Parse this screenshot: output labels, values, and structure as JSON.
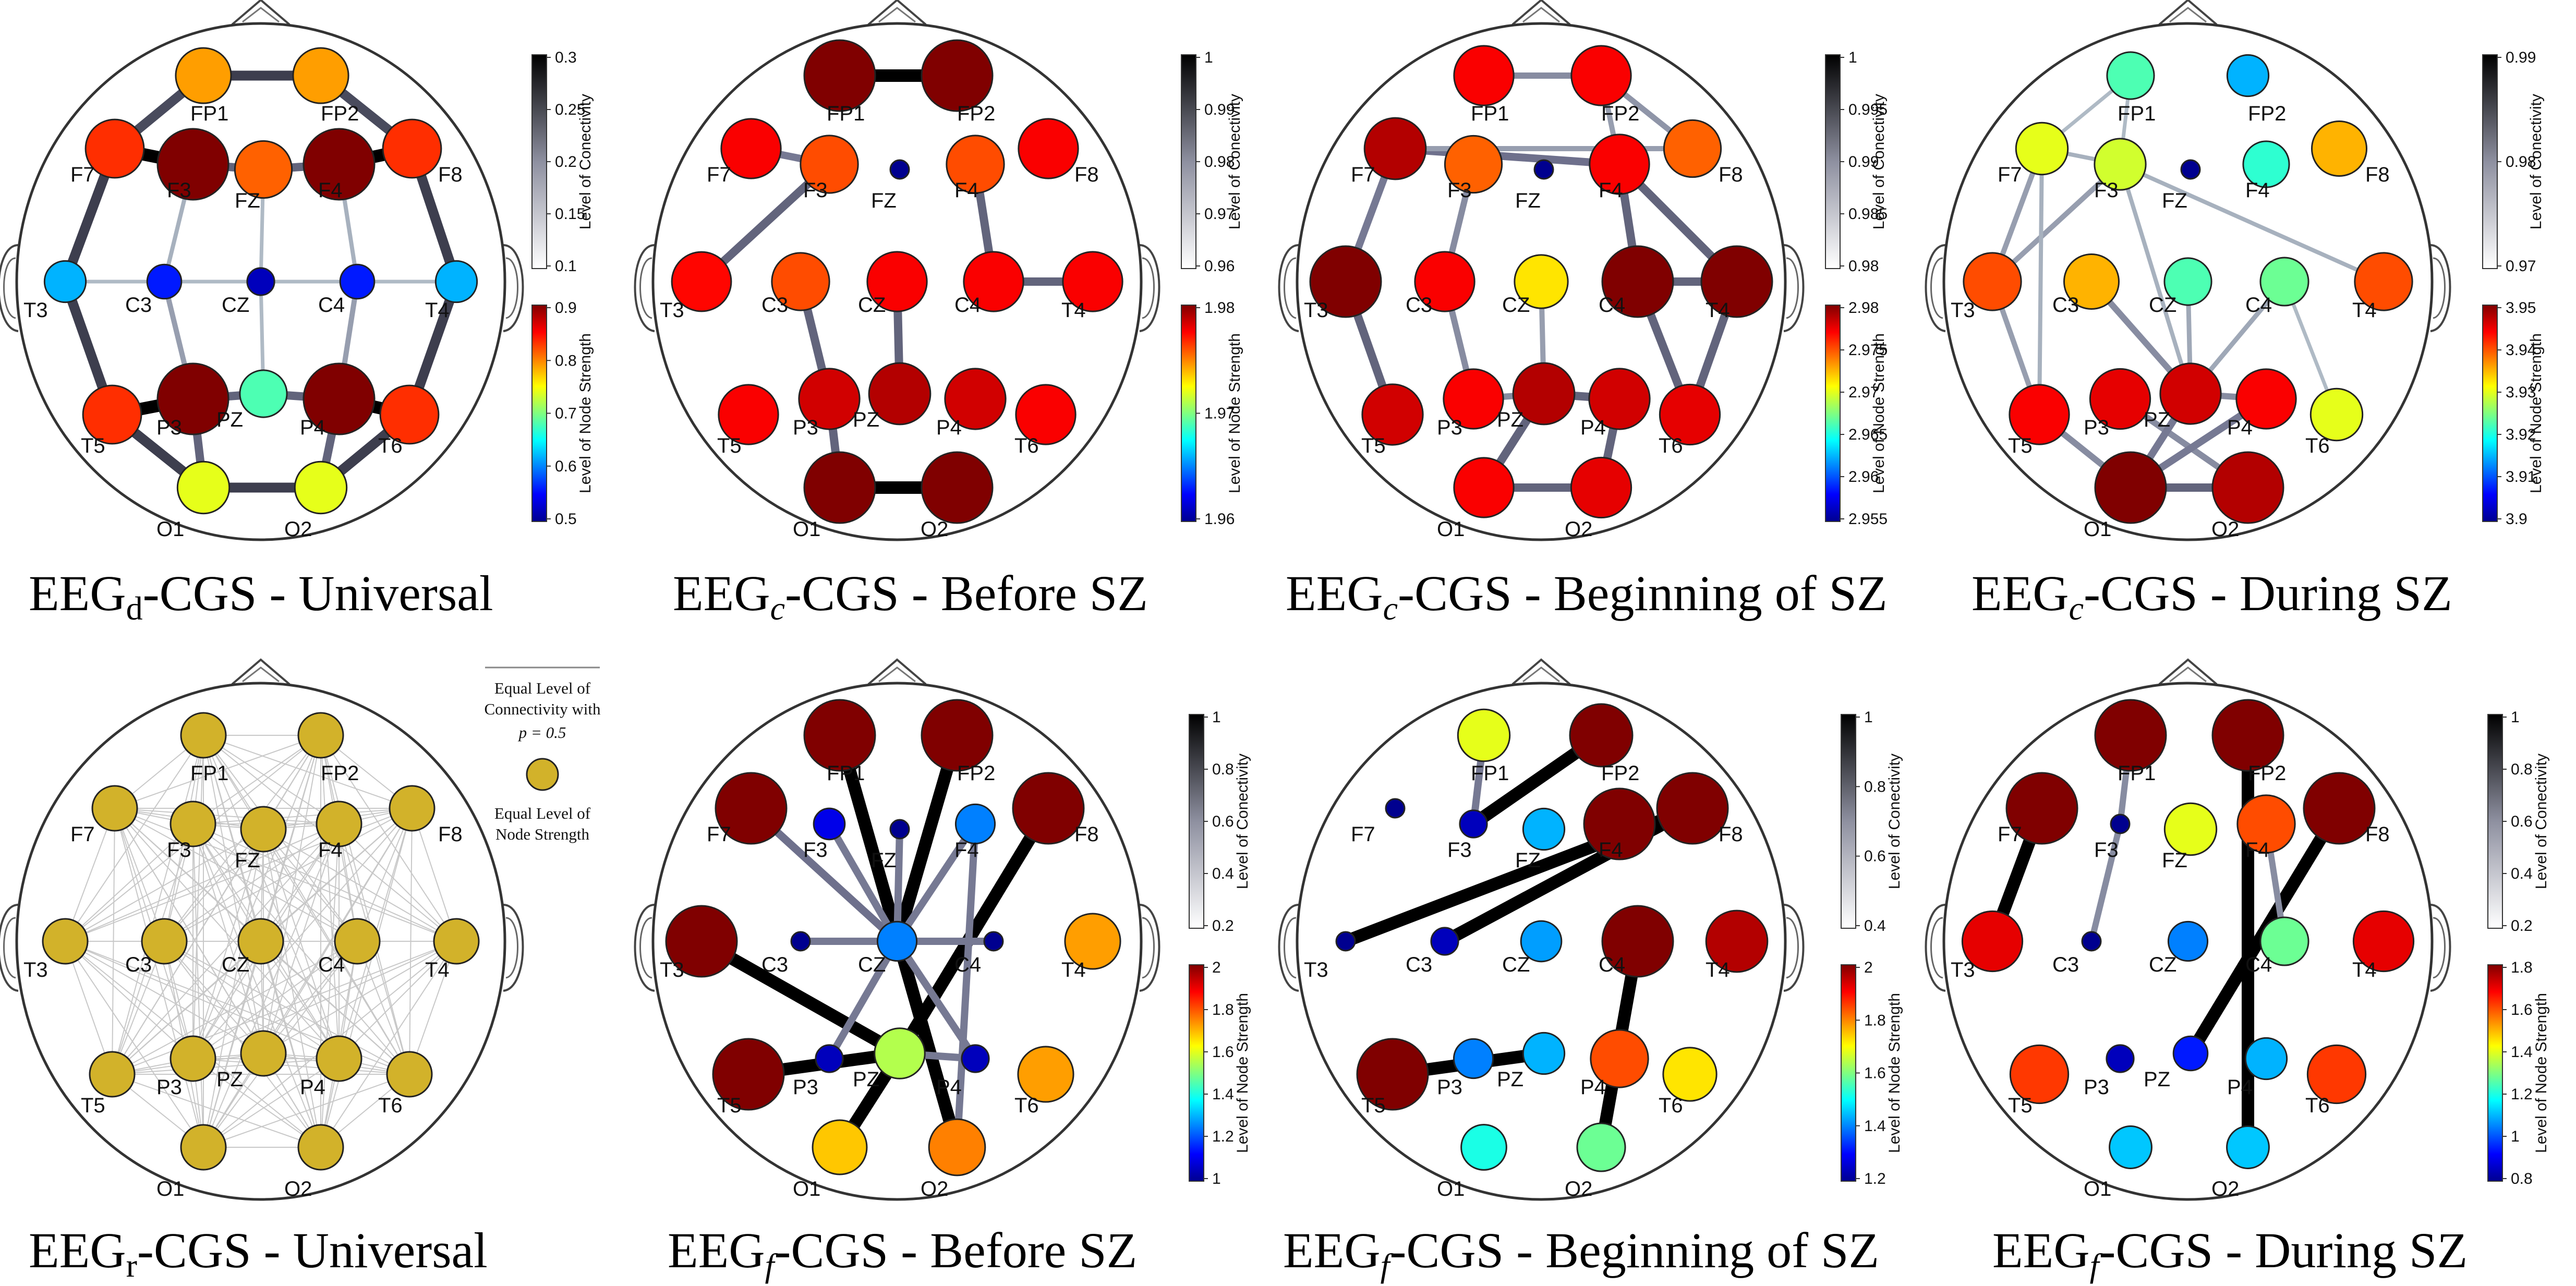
{
  "electrodes": [
    "FP1",
    "FP2",
    "F7",
    "F3",
    "FZ",
    "F4",
    "F8",
    "T3",
    "C3",
    "CZ",
    "C4",
    "T4",
    "T5",
    "P3",
    "PZ",
    "P4",
    "T6",
    "O1",
    "O2"
  ],
  "cbar_labels": {
    "conn": "Level of Conectivity",
    "node": "Level of Node Strength"
  },
  "legend": {
    "line1": "Equal Level of",
    "line2": "Connectivity with",
    "line3": "p = 0.5",
    "line4": "Equal Level of",
    "line5": "Node Strength",
    "node_color": "#d2b22a"
  },
  "panels": [
    {
      "id": "p1",
      "title": {
        "base": "EEG",
        "sub": "d",
        "rest": "-CGS - Universal"
      },
      "conn_ticks": [
        "0.3",
        "0.25",
        "0.2",
        "0.15",
        "0.1"
      ],
      "node_ticks": [
        "0.9",
        "0.8",
        "0.7",
        "0.6",
        "0.5"
      ],
      "nodes": {
        "FP1": 0.72,
        "FP2": 0.72,
        "F7": 0.83,
        "F3": 1.0,
        "FZ": 0.78,
        "F4": 1.0,
        "F8": 0.83,
        "T3": 0.3,
        "C3": 0.15,
        "CZ": 0.05,
        "C4": 0.15,
        "T4": 0.3,
        "T5": 0.83,
        "P3": 1.0,
        "PZ": 0.45,
        "P4": 1.0,
        "T6": 0.83,
        "O1": 0.6,
        "O2": 0.6
      },
      "large_nodes": [
        "F3",
        "F4",
        "P3",
        "P4"
      ],
      "edges": [
        [
          "FP1",
          "FP2",
          0.75
        ],
        [
          "FP1",
          "F7",
          0.7
        ],
        [
          "FP2",
          "F8",
          0.7
        ],
        [
          "F7",
          "F3",
          1.0
        ],
        [
          "F3",
          "FZ",
          0.6
        ],
        [
          "FZ",
          "F4",
          0.6
        ],
        [
          "F4",
          "F8",
          1.0
        ],
        [
          "F7",
          "T3",
          0.75
        ],
        [
          "F8",
          "T4",
          0.75
        ],
        [
          "T3",
          "T5",
          0.75
        ],
        [
          "T4",
          "T6",
          0.75
        ],
        [
          "T5",
          "P3",
          1.0
        ],
        [
          "P3",
          "PZ",
          0.6
        ],
        [
          "PZ",
          "P4",
          0.6
        ],
        [
          "P4",
          "T6",
          1.0
        ],
        [
          "T5",
          "O1",
          0.75
        ],
        [
          "T6",
          "O2",
          0.75
        ],
        [
          "O1",
          "O2",
          0.75
        ],
        [
          "P3",
          "O1",
          0.6
        ],
        [
          "P4",
          "O2",
          0.6
        ],
        [
          "T3",
          "C3",
          0.15
        ],
        [
          "C3",
          "CZ",
          0.15
        ],
        [
          "CZ",
          "C4",
          0.15
        ],
        [
          "C4",
          "T4",
          0.15
        ],
        [
          "F3",
          "C3",
          0.2
        ],
        [
          "F4",
          "C4",
          0.2
        ],
        [
          "C3",
          "P3",
          0.3
        ],
        [
          "C4",
          "P4",
          0.3
        ],
        [
          "FZ",
          "CZ",
          0.15
        ],
        [
          "CZ",
          "PZ",
          0.15
        ]
      ]
    },
    {
      "id": "p2",
      "title": {
        "base": "EEG",
        "sub": "c",
        "rest": "-CGS - Before SZ"
      },
      "conn_ticks": [
        "1",
        "0.99",
        "0.98",
        "0.97",
        "0.96"
      ],
      "node_ticks": [
        "1.98",
        "1.97",
        "1.96"
      ],
      "nodes": {
        "FP1": 1.0,
        "FP2": 1.0,
        "F7": 0.88,
        "F3": 0.8,
        "FZ": 0.0,
        "F4": 0.8,
        "F8": 0.88,
        "T3": 0.87,
        "C3": 0.8,
        "CZ": 0.88,
        "C4": 0.88,
        "T4": 0.88,
        "T5": 0.88,
        "P3": 0.92,
        "PZ": 0.95,
        "P4": 0.92,
        "T6": 0.88,
        "O1": 1.0,
        "O2": 1.0
      },
      "large_nodes": [
        "FP1",
        "FP2",
        "O1",
        "O2"
      ],
      "edges": [
        [
          "FP1",
          "FP2",
          1.0
        ],
        [
          "O1",
          "O2",
          1.0
        ],
        [
          "F7",
          "F3",
          0.5
        ],
        [
          "F3",
          "T3",
          0.6
        ],
        [
          "F4",
          "C4",
          0.6
        ],
        [
          "C4",
          "T4",
          0.6
        ],
        [
          "C3",
          "P3",
          0.6
        ],
        [
          "P3",
          "O1",
          0.6
        ],
        [
          "CZ",
          "PZ",
          0.6
        ]
      ]
    },
    {
      "id": "p3",
      "title": {
        "base": "EEG",
        "sub": "c",
        "rest": "-CGS - Beginning of SZ"
      },
      "conn_ticks": [
        "1",
        "0.995",
        "0.99",
        "0.985",
        "0.98"
      ],
      "node_ticks": [
        "2.98",
        "2.975",
        "2.97",
        "2.965",
        "2.96",
        "2.955"
      ],
      "nodes": {
        "FP1": 0.88,
        "FP2": 0.88,
        "F7": 0.95,
        "F3": 0.78,
        "FZ": 0.0,
        "F4": 0.88,
        "F8": 0.78,
        "T3": 1.0,
        "C3": 0.88,
        "CZ": 0.65,
        "C4": 1.0,
        "T4": 1.0,
        "T5": 0.92,
        "P3": 0.88,
        "PZ": 0.95,
        "P4": 0.92,
        "T6": 0.9,
        "O1": 0.88,
        "O2": 0.9
      },
      "large_nodes": [
        "T3",
        "C4",
        "T4"
      ],
      "edges": [
        [
          "FP1",
          "FP2",
          0.4
        ],
        [
          "FP2",
          "F8",
          0.35
        ],
        [
          "FP2",
          "F4",
          0.3
        ],
        [
          "F7",
          "F4",
          0.55
        ],
        [
          "F7",
          "F8",
          0.3
        ],
        [
          "F4",
          "C4",
          0.6
        ],
        [
          "F4",
          "T4",
          0.6
        ],
        [
          "C4",
          "T4",
          0.6
        ],
        [
          "C4",
          "T6",
          0.6
        ],
        [
          "T4",
          "T6",
          0.6
        ],
        [
          "F3",
          "C3",
          0.4
        ],
        [
          "C3",
          "P3",
          0.4
        ],
        [
          "T3",
          "T5",
          0.6
        ],
        [
          "F7",
          "T3",
          0.5
        ],
        [
          "PZ",
          "P4",
          0.6
        ],
        [
          "PZ",
          "O1",
          0.6
        ],
        [
          "P4",
          "O2",
          0.6
        ],
        [
          "O1",
          "O2",
          0.6
        ],
        [
          "CZ",
          "PZ",
          0.3
        ],
        [
          "P3",
          "PZ",
          0.4
        ]
      ]
    },
    {
      "id": "p4",
      "title": {
        "base": "EEG",
        "sub": "c",
        "rest": "-CGS - During SZ"
      },
      "conn_ticks": [
        "0.99",
        "0.98",
        "0.97"
      ],
      "node_ticks": [
        "3.95",
        "3.94",
        "3.93",
        "3.92",
        "3.91",
        "3.9"
      ],
      "nodes": {
        "FP1": 0.45,
        "FP2": 0.3,
        "F7": 0.6,
        "F3": 0.58,
        "FZ": 0.0,
        "F4": 0.42,
        "F8": 0.7,
        "T3": 0.8,
        "C3": 0.7,
        "CZ": 0.45,
        "C4": 0.48,
        "T4": 0.8,
        "T5": 0.88,
        "P3": 0.9,
        "PZ": 0.92,
        "P4": 0.88,
        "T6": 0.6,
        "O1": 1.0,
        "O2": 0.95
      },
      "large_nodes": [
        "O1",
        "O2"
      ],
      "edges": [
        [
          "FP1",
          "F7",
          0.15
        ],
        [
          "FP1",
          "F3",
          0.15
        ],
        [
          "F7",
          "F3",
          0.2
        ],
        [
          "F3",
          "T4",
          0.2
        ],
        [
          "F7",
          "T3",
          0.3
        ],
        [
          "F3",
          "T3",
          0.3
        ],
        [
          "F7",
          "T5",
          0.2
        ],
        [
          "F3",
          "PZ",
          0.2
        ],
        [
          "C3",
          "PZ",
          0.4
        ],
        [
          "CZ",
          "PZ",
          0.25
        ],
        [
          "PZ",
          "C4",
          0.25
        ],
        [
          "PZ",
          "P4",
          0.4
        ],
        [
          "P3",
          "O2",
          0.4
        ],
        [
          "PZ",
          "O1",
          0.5
        ],
        [
          "P4",
          "O1",
          0.5
        ],
        [
          "O1",
          "O2",
          0.6
        ],
        [
          "T5",
          "O1",
          0.4
        ],
        [
          "T3",
          "T5",
          0.3
        ],
        [
          "C4",
          "T6",
          0.15
        ]
      ]
    },
    {
      "id": "p5",
      "title": {
        "base": "EEG",
        "sub": "r",
        "rest": "-CGS - Universal"
      },
      "legend": true
    },
    {
      "id": "p6",
      "title": {
        "base": "EEG",
        "sub": "f",
        "rest": "-CGS - Before SZ"
      },
      "conn_ticks": [
        "1",
        "0.8",
        "0.6",
        "0.4",
        "0.2"
      ],
      "node_ticks": [
        "2",
        "1.8",
        "1.6",
        "1.4",
        "1.2",
        "1"
      ],
      "nodes": {
        "FP1": 1.0,
        "FP2": 1.0,
        "F7": 1.0,
        "F3": 0.1,
        "FZ": 0.0,
        "F4": 0.25,
        "F8": 1.0,
        "T3": 1.0,
        "C3": 0.0,
        "CZ": 0.25,
        "C4": 0.0,
        "T4": 0.72,
        "T5": 1.0,
        "P3": 0.05,
        "PZ": 0.55,
        "P4": 0.05,
        "T6": 0.72,
        "O1": 0.68,
        "O2": 0.75
      },
      "large_nodes": [
        "FP1",
        "FP2",
        "F7",
        "F8",
        "T3",
        "T5"
      ],
      "edges": [
        [
          "FP1",
          "O2",
          1.0
        ],
        [
          "FP2",
          "CZ",
          1.0
        ],
        [
          "F8",
          "PZ",
          1.0
        ],
        [
          "T3",
          "PZ",
          1.0
        ],
        [
          "T5",
          "PZ",
          1.0
        ],
        [
          "PZ",
          "O1",
          1.0
        ],
        [
          "F7",
          "CZ",
          0.55
        ],
        [
          "F3",
          "CZ",
          0.5
        ],
        [
          "FZ",
          "CZ",
          0.5
        ],
        [
          "F4",
          "CZ",
          0.5
        ],
        [
          "C3",
          "CZ",
          0.5
        ],
        [
          "CZ",
          "C4",
          0.5
        ],
        [
          "CZ",
          "P3",
          0.5
        ],
        [
          "CZ",
          "P4",
          0.5
        ],
        [
          "F4",
          "O2",
          0.5
        ],
        [
          "PZ",
          "P4",
          0.5
        ]
      ]
    },
    {
      "id": "p7",
      "title": {
        "base": "EEG",
        "sub": "f",
        "rest": "-CGS - Beginning of SZ"
      },
      "conn_ticks": [
        "1",
        "0.8",
        "0.6",
        "0.4"
      ],
      "node_ticks": [
        "2",
        "1.8",
        "1.6",
        "1.4",
        "1.2"
      ],
      "nodes": {
        "FP1": 0.6,
        "FP2": 1.0,
        "F7": 0.0,
        "F3": 0.05,
        "FZ": 0.3,
        "F4": 1.0,
        "F8": 1.0,
        "T3": 0.0,
        "C3": 0.05,
        "CZ": 0.28,
        "C4": 1.0,
        "T4": 0.95,
        "T5": 1.0,
        "P3": 0.25,
        "PZ": 0.3,
        "P4": 0.8,
        "T6": 0.65,
        "O1": 0.4,
        "O2": 0.48
      },
      "large_nodes": [
        "F4",
        "F8",
        "C4",
        "T5"
      ],
      "edges": [
        [
          "FP2",
          "F3",
          1.0
        ],
        [
          "FP1",
          "F3",
          0.5
        ],
        [
          "T3",
          "F8",
          1.0
        ],
        [
          "C3",
          "F8",
          1.0
        ],
        [
          "C4",
          "O2",
          1.0
        ],
        [
          "T5",
          "PZ",
          1.0
        ]
      ]
    },
    {
      "id": "p8",
      "title": {
        "base": "EEG",
        "sub": "f",
        "rest": "-CGS - During SZ"
      },
      "conn_ticks": [
        "1",
        "0.8",
        "0.6",
        "0.4",
        "0.2"
      ],
      "node_ticks": [
        "1.8",
        "1.6",
        "1.4",
        "1.2",
        "1",
        "0.8"
      ],
      "nodes": {
        "FP1": 1.0,
        "FP2": 1.0,
        "F7": 1.0,
        "F3": 0.0,
        "FZ": 0.6,
        "F4": 0.8,
        "F8": 1.0,
        "T3": 0.9,
        "C3": 0.0,
        "CZ": 0.25,
        "C4": 0.48,
        "T4": 0.9,
        "T5": 0.82,
        "P3": 0.05,
        "PZ": 0.15,
        "P4": 0.3,
        "T6": 0.82,
        "O1": 0.32,
        "O2": 0.32
      },
      "large_nodes": [
        "FP1",
        "FP2",
        "F7",
        "F8"
      ],
      "edges": [
        [
          "FP2",
          "O2",
          1.0
        ],
        [
          "F7",
          "T3",
          1.0
        ],
        [
          "F8",
          "PZ",
          1.0
        ],
        [
          "FP1",
          "F3",
          0.4
        ],
        [
          "F3",
          "C3",
          0.4
        ],
        [
          "F4",
          "C4",
          0.4
        ]
      ]
    }
  ]
}
